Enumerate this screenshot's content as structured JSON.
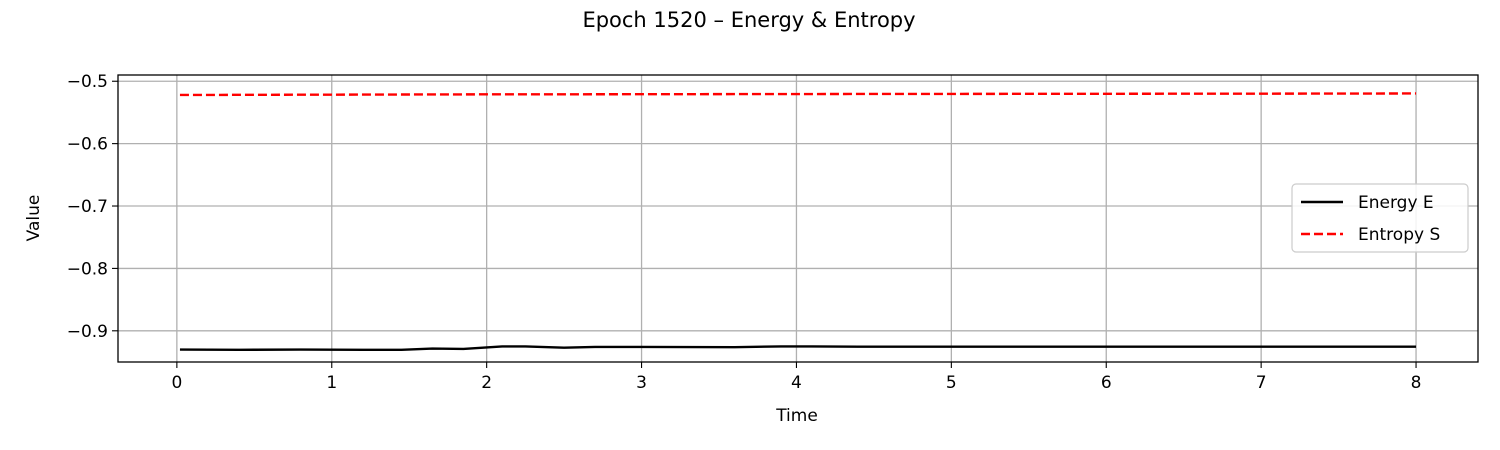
{
  "chart_data": {
    "type": "line",
    "title": "Epoch 1520 – Energy & Entropy",
    "xlabel": "Time",
    "ylabel": "Value",
    "xlim": [
      -0.38,
      8.4
    ],
    "ylim": [
      -0.95,
      -0.49
    ],
    "xticks": [
      0,
      1,
      2,
      3,
      4,
      5,
      6,
      7,
      8
    ],
    "xtick_labels": [
      "0",
      "1",
      "2",
      "3",
      "4",
      "5",
      "6",
      "7",
      "8"
    ],
    "yticks": [
      -0.5,
      -0.6,
      -0.7,
      -0.8,
      -0.9
    ],
    "ytick_labels": [
      "−0.5",
      "−0.6",
      "−0.7",
      "−0.8",
      "−0.9"
    ],
    "grid": true,
    "legend_position": "center-right",
    "series": [
      {
        "name": "Energy E",
        "color": "#000000",
        "style": "solid",
        "x": [
          0.02,
          0.4,
          0.8,
          1.2,
          1.45,
          1.65,
          1.85,
          2.1,
          2.25,
          2.5,
          2.7,
          3.0,
          3.6,
          3.9,
          4.1,
          4.4,
          5.0,
          6.0,
          7.0,
          8.0
        ],
        "y": [
          -0.93,
          -0.9305,
          -0.93,
          -0.9305,
          -0.9305,
          -0.9285,
          -0.929,
          -0.925,
          -0.925,
          -0.927,
          -0.9258,
          -0.9258,
          -0.9262,
          -0.925,
          -0.925,
          -0.9255,
          -0.9255,
          -0.9255,
          -0.9255,
          -0.9255
        ]
      },
      {
        "name": "Entropy S",
        "color": "#ff0000",
        "style": "dashed",
        "x": [
          0.02,
          1.0,
          2.0,
          3.0,
          4.0,
          5.0,
          6.0,
          7.0,
          8.0
        ],
        "y": [
          -0.522,
          -0.5215,
          -0.521,
          -0.5208,
          -0.5205,
          -0.5203,
          -0.5201,
          -0.5199,
          -0.5196
        ]
      }
    ]
  }
}
